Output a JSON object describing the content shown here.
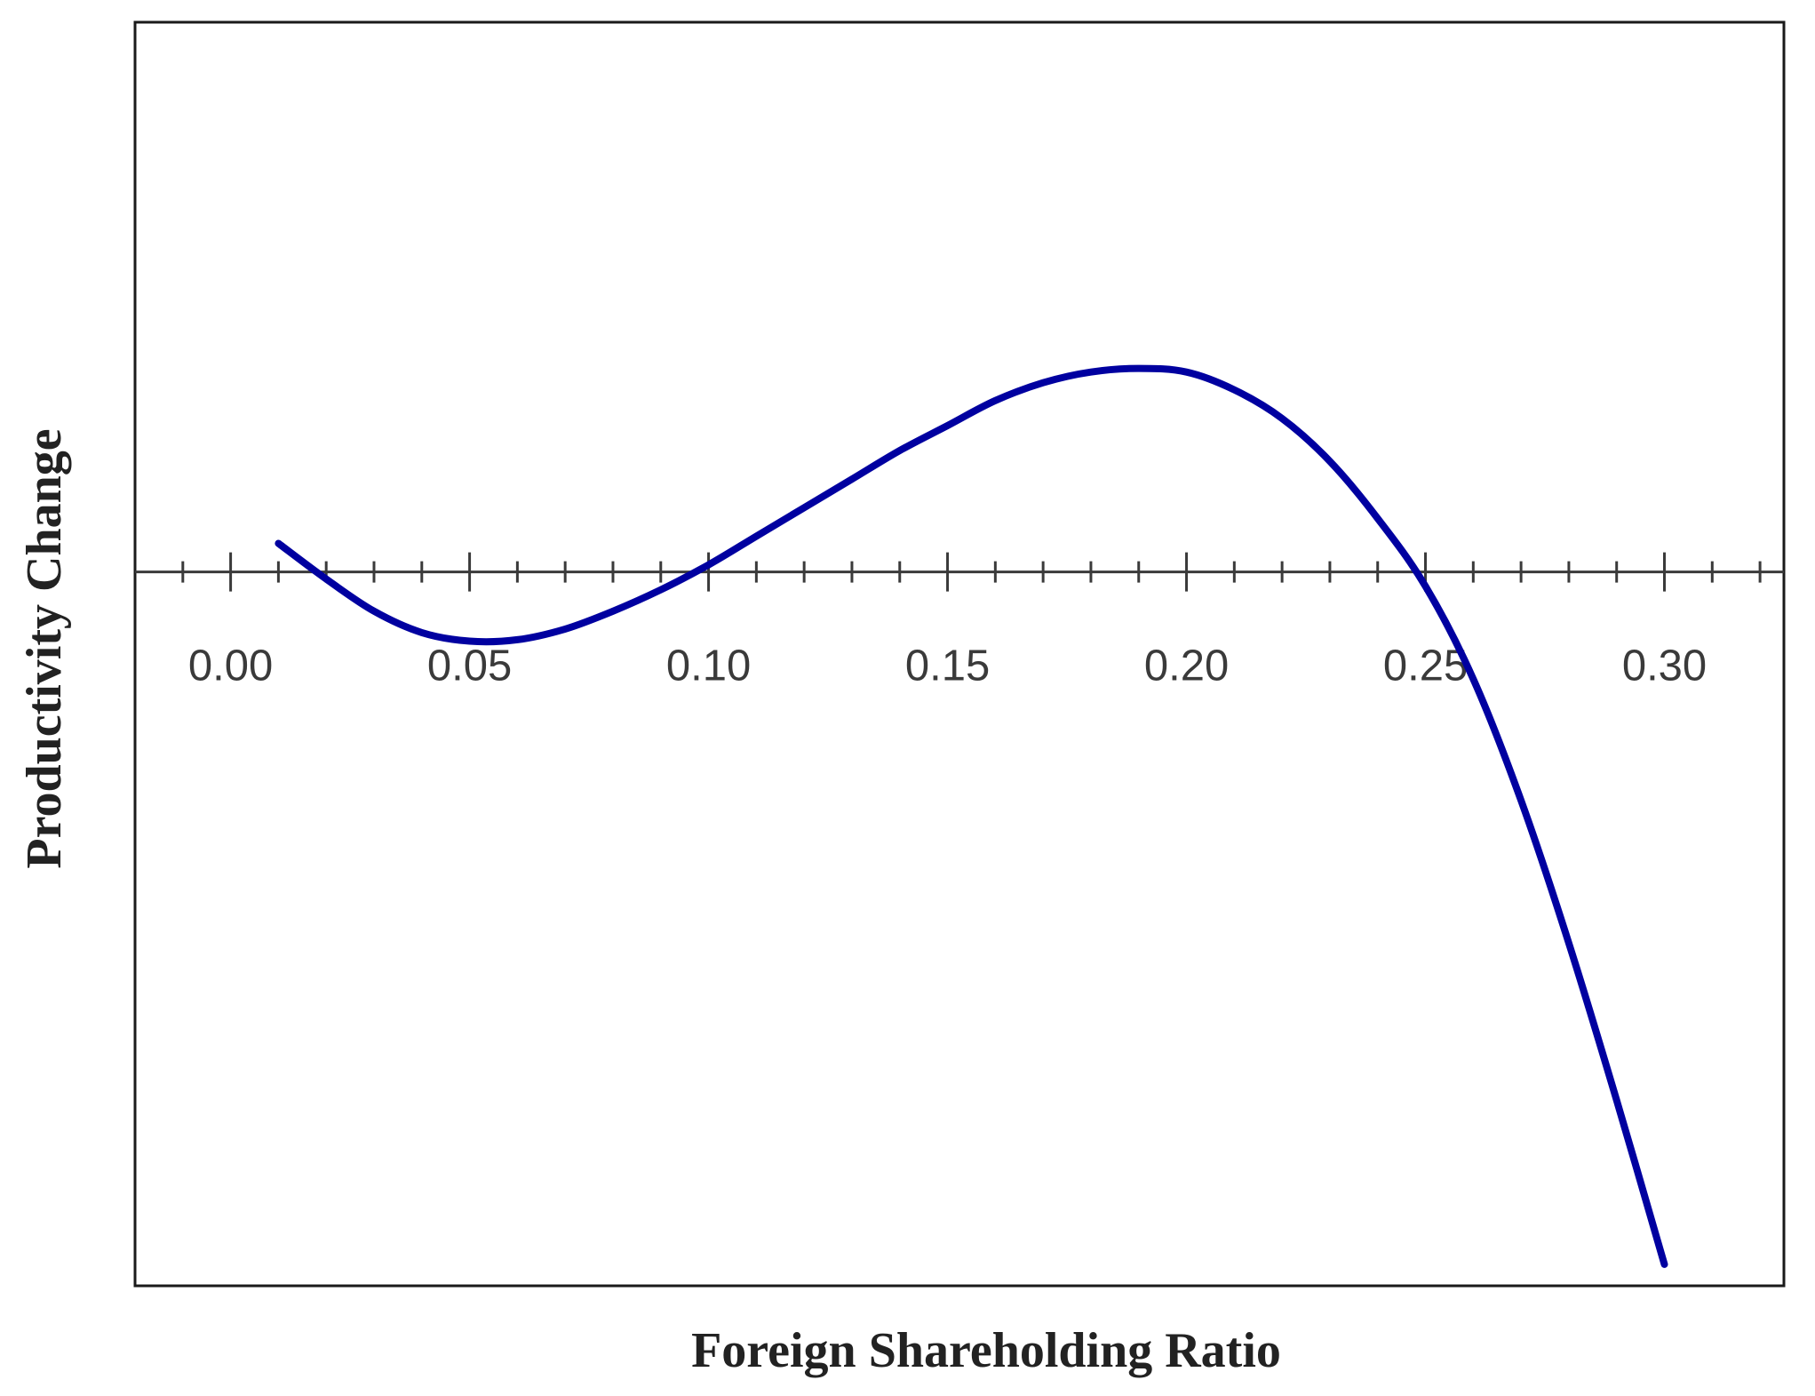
{
  "chart_data": {
    "type": "line",
    "title": "",
    "xlabel": "Foreign Shareholding Ratio",
    "ylabel": "Productivity Change",
    "xlim": [
      -0.02,
      0.325
    ],
    "ylim": [
      -1.0,
      0.77
    ],
    "x_ticks": [
      0.0,
      0.05,
      0.1,
      0.15,
      0.2,
      0.25,
      0.3
    ],
    "x_tick_labels": [
      "0.00",
      "0.05",
      "0.10",
      "0.15",
      "0.20",
      "0.25",
      "0.30"
    ],
    "x_minor_step": 0.01,
    "y_ticks_shown": false,
    "grid": false,
    "series": [
      {
        "color": "#0000a0",
        "x": [
          0.01,
          0.02,
          0.03,
          0.04,
          0.05,
          0.06,
          0.07,
          0.08,
          0.09,
          0.1,
          0.11,
          0.12,
          0.13,
          0.14,
          0.15,
          0.16,
          0.17,
          0.18,
          0.19,
          0.2,
          0.21,
          0.22,
          0.23,
          0.24,
          0.25,
          0.26,
          0.27,
          0.28,
          0.29,
          0.3
        ],
        "y": [
          0.04,
          -0.01,
          -0.055,
          -0.085,
          -0.097,
          -0.095,
          -0.08,
          -0.055,
          -0.025,
          0.01,
          0.05,
          0.09,
          0.13,
          0.17,
          0.205,
          0.24,
          0.265,
          0.28,
          0.285,
          0.28,
          0.255,
          0.215,
          0.155,
          0.075,
          -0.02,
          -0.15,
          -0.32,
          -0.52,
          -0.74,
          -0.97
        ]
      }
    ]
  }
}
